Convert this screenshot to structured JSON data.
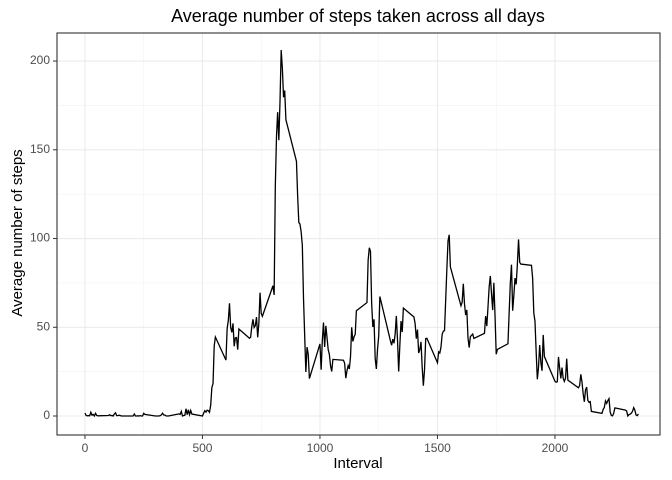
{
  "chart_data": {
    "type": "line",
    "title": "Average number of steps taken across all days",
    "x_label": "Interval",
    "y_label": "Average number of steps",
    "xlim": [
      -119,
      2447
    ],
    "ylim": [
      -10.7,
      215.8
    ],
    "xticks": [
      0,
      500,
      1000,
      1500,
      2000
    ],
    "yticks": [
      0,
      50,
      100,
      150,
      200
    ],
    "grid": true,
    "series": [
      {
        "color": "#000000",
        "x": [
          0,
          5,
          10,
          15,
          20,
          25,
          30,
          35,
          40,
          45,
          50,
          55,
          100,
          105,
          110,
          115,
          120,
          125,
          130,
          135,
          140,
          145,
          150,
          155,
          200,
          205,
          210,
          215,
          220,
          225,
          230,
          235,
          240,
          245,
          250,
          255,
          300,
          305,
          310,
          315,
          320,
          325,
          330,
          335,
          340,
          345,
          350,
          355,
          400,
          405,
          410,
          415,
          420,
          425,
          430,
          435,
          440,
          445,
          450,
          455,
          500,
          505,
          510,
          515,
          520,
          525,
          530,
          535,
          540,
          545,
          550,
          555,
          600,
          605,
          610,
          615,
          620,
          625,
          630,
          635,
          640,
          645,
          650,
          655,
          700,
          705,
          710,
          715,
          720,
          725,
          730,
          735,
          740,
          745,
          750,
          755,
          800,
          805,
          810,
          815,
          820,
          825,
          830,
          835,
          840,
          845,
          850,
          855,
          900,
          905,
          910,
          915,
          920,
          925,
          930,
          935,
          940,
          945,
          950,
          955,
          1000,
          1005,
          1010,
          1015,
          1020,
          1025,
          1030,
          1035,
          1040,
          1045,
          1050,
          1055,
          1100,
          1105,
          1110,
          1115,
          1120,
          1125,
          1130,
          1135,
          1140,
          1145,
          1150,
          1155,
          1200,
          1205,
          1210,
          1215,
          1220,
          1225,
          1230,
          1235,
          1240,
          1245,
          1250,
          1255,
          1300,
          1305,
          1310,
          1315,
          1320,
          1325,
          1330,
          1335,
          1340,
          1345,
          1350,
          1355,
          1400,
          1405,
          1410,
          1415,
          1420,
          1425,
          1430,
          1435,
          1440,
          1445,
          1450,
          1455,
          1500,
          1505,
          1510,
          1515,
          1520,
          1525,
          1530,
          1535,
          1540,
          1545,
          1550,
          1555,
          1600,
          1605,
          1610,
          1615,
          1620,
          1625,
          1630,
          1635,
          1640,
          1645,
          1650,
          1655,
          1700,
          1705,
          1710,
          1715,
          1720,
          1725,
          1730,
          1735,
          1740,
          1745,
          1750,
          1755,
          1800,
          1805,
          1810,
          1815,
          1820,
          1825,
          1830,
          1835,
          1840,
          1845,
          1850,
          1855,
          1900,
          1905,
          1910,
          1915,
          1920,
          1925,
          1930,
          1935,
          1940,
          1945,
          1950,
          1955,
          2000,
          2005,
          2010,
          2015,
          2020,
          2025,
          2030,
          2035,
          2040,
          2045,
          2050,
          2055,
          2100,
          2105,
          2110,
          2115,
          2120,
          2125,
          2130,
          2135,
          2140,
          2145,
          2150,
          2155,
          2200,
          2205,
          2210,
          2215,
          2220,
          2225,
          2230,
          2235,
          2240,
          2245,
          2250,
          2255,
          2300,
          2305,
          2310,
          2315,
          2320,
          2325,
          2330,
          2335,
          2340,
          2345,
          2350,
          2355
        ],
        "values": [
          1.7,
          0.3,
          0.1,
          0.2,
          0.1,
          2.1,
          0.5,
          0.9,
          0,
          1.5,
          0.3,
          0.1,
          0.3,
          0.7,
          0.2,
          0.3,
          0,
          1.1,
          1.8,
          0.2,
          0.2,
          0.4,
          0.3,
          0,
          0,
          0,
          1.1,
          0,
          0,
          0.1,
          0,
          0.2,
          0,
          0,
          1.5,
          0.9,
          0,
          0,
          0,
          0,
          0.2,
          0.6,
          1.6,
          0.6,
          0.5,
          0.1,
          0,
          0,
          1.2,
          0.9,
          2.6,
          0,
          0.3,
          0.4,
          4.1,
          0.7,
          3.5,
          0.8,
          3.1,
          1.1,
          0,
          1.6,
          3,
          2.2,
          3.3,
          3,
          2.1,
          6.1,
          16,
          18.3,
          39.5,
          44.5,
          31.5,
          49.3,
          53.8,
          63.5,
          50,
          47.1,
          52.2,
          39.3,
          44,
          44.2,
          37.4,
          49,
          43.8,
          44.4,
          50.5,
          54.5,
          49.9,
          51,
          55.7,
          44.3,
          52.3,
          69.5,
          57.8,
          56.2,
          73.4,
          68.2,
          129.4,
          157.5,
          171.2,
          155.4,
          177.3,
          206.2,
          195.9,
          179.6,
          183.4,
          167,
          143.5,
          124,
          109.1,
          108.1,
          103.7,
          96,
          66.2,
          45.2,
          24.8,
          38.8,
          35,
          21.1,
          40.6,
          26.1,
          42.4,
          52.7,
          38.9,
          50.8,
          44.3,
          37.4,
          34.7,
          28.3,
          25.1,
          31.9,
          31.4,
          29.7,
          21.3,
          25.5,
          28.4,
          26.5,
          33.4,
          50,
          42,
          44.6,
          46,
          59.3,
          63.9,
          87.7,
          94.8,
          92.8,
          63.4,
          50.2,
          54.5,
          32.4,
          26.5,
          37.7,
          45.1,
          67.3,
          42.3,
          39.9,
          43.3,
          41,
          46.2,
          56.4,
          42.8,
          25.1,
          40,
          53.5,
          47.3,
          60.8,
          55.8,
          52,
          43.6,
          48.7,
          35.5,
          37.5,
          41.8,
          27.5,
          17.1,
          26.1,
          43.6,
          43.8,
          30,
          36.1,
          35.5,
          38.8,
          46,
          47.8,
          48.1,
          65.3,
          82.9,
          98.7,
          102.1,
          84,
          62.1,
          64.1,
          74.5,
          63.2,
          56.9,
          59.8,
          43.9,
          38.6,
          44.7,
          45.5,
          46.2,
          43.7,
          46.6,
          56.3,
          50.7,
          61.2,
          72.7,
          78.9,
          68.9,
          59.7,
          75.1,
          56.5,
          34.8,
          37.5,
          40.7,
          58,
          74.7,
          85.3,
          59.3,
          67.8,
          77.7,
          74.2,
          85.3,
          99.5,
          86.6,
          85.6,
          84.9,
          77.8,
          58,
          53.4,
          36.3,
          20.7,
          27.4,
          40,
          30.2,
          25.5,
          45.7,
          33.5,
          19.6,
          19,
          19.3,
          33.3,
          26.8,
          21.2,
          27.3,
          21.3,
          19.5,
          21.3,
          32.3,
          20.2,
          15.9,
          17.2,
          23.5,
          19.2,
          12.5,
          8,
          14.7,
          16.3,
          8.7,
          7.8,
          8.1,
          2.6,
          1.5,
          3.7,
          4.8,
          8.5,
          7.1,
          8.7,
          9.8,
          2.2,
          0.3,
          0.1,
          1.6,
          4.6,
          3.3,
          2.8,
          0,
          0.8,
          1,
          1.6,
          2.6,
          4.7,
          3.3,
          0.6,
          0.2,
          1.1
        ]
      }
    ]
  }
}
